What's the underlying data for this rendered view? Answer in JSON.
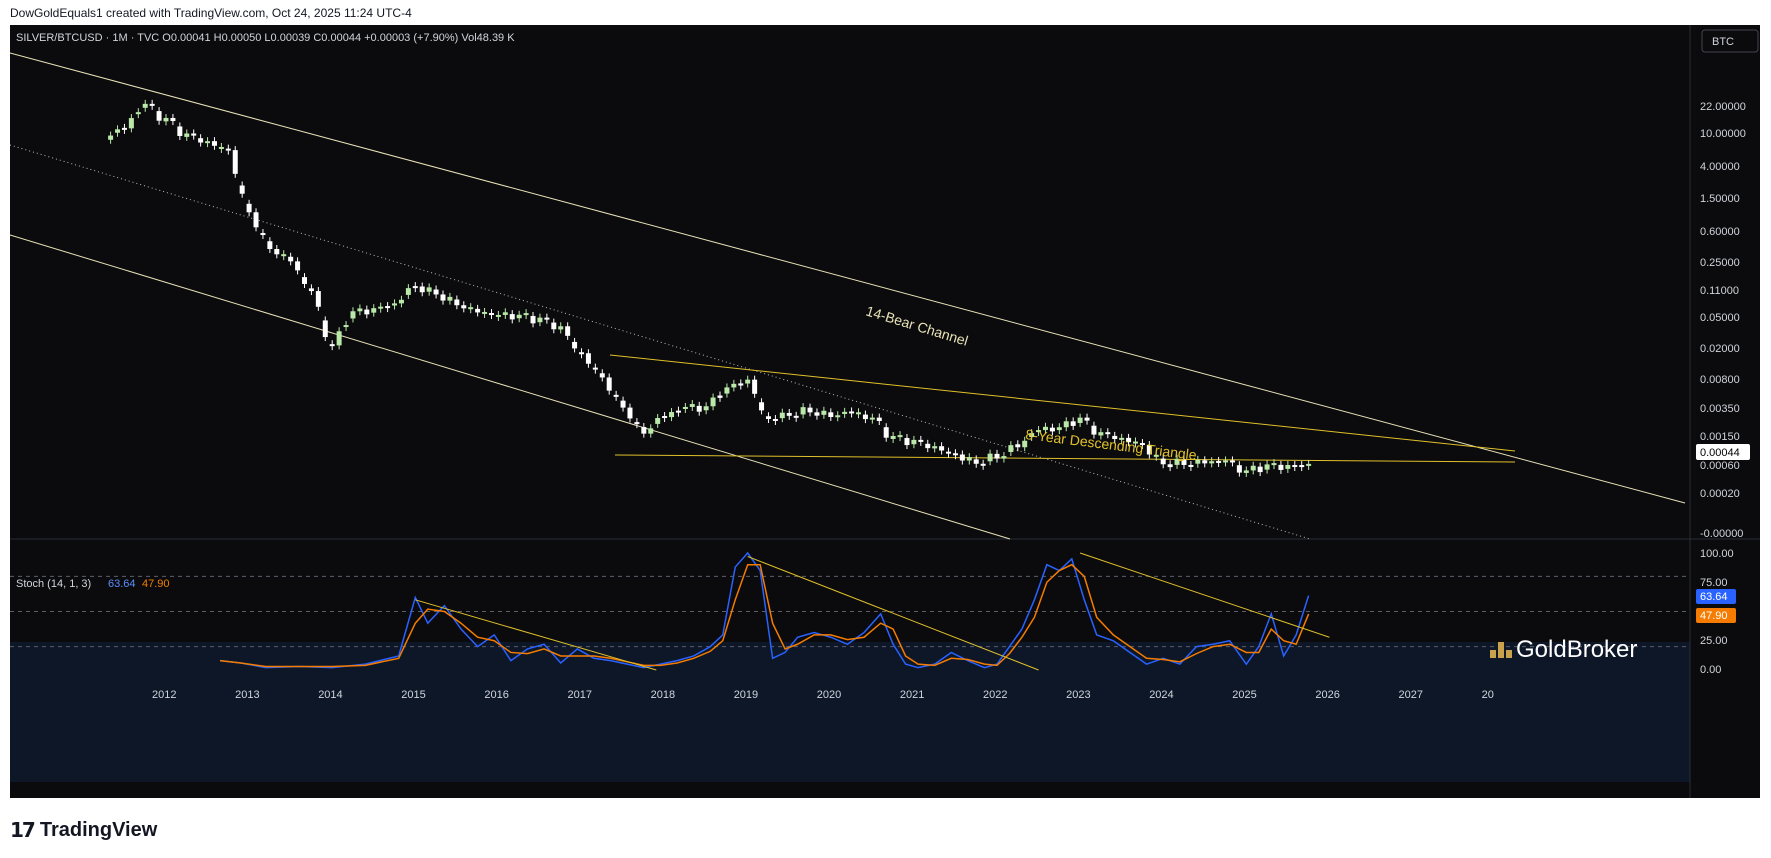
{
  "header": {
    "credit": "DowGoldEquals1 created with TradingView.com, Oct 24, 2025 11:24 UTC-4"
  },
  "legend": {
    "symbol_line": "SILVER/BTCUSD · 1M · TVC  O0.00041  H0.00050  L0.00039  C0.00044  +0.00003 (+7.90%)  Vol48.39 K",
    "currency_button": "BTC",
    "stoch_label": "Stoch (14, 1, 3)",
    "stoch_k": "63.64",
    "stoch_d": "47.90"
  },
  "watermark": "GoldBroker",
  "footer": {
    "brand": "TradingView"
  },
  "colors": {
    "background": "#0b0b0d",
    "channel": "#e8e2b8",
    "triangle": "#e0c02a",
    "candle_up": "#b9e8a8",
    "candle_down": "#ffffff",
    "stoch_k": "#2962ff",
    "stoch_d": "#f57c00",
    "price_tag": "#ffffff",
    "k_tag": "#2962ff",
    "d_tag": "#f57c00"
  },
  "chart_data": [
    {
      "type": "candlestick",
      "title": "SILVER/BTCUSD",
      "interval": "1M",
      "scale": "log",
      "x_ticks": [
        "2012",
        "2013",
        "2014",
        "2015",
        "2016",
        "2017",
        "2018",
        "2019",
        "2020",
        "2021",
        "2022",
        "2023",
        "2024",
        "2025",
        "2026",
        "2027",
        "20"
      ],
      "y_ticks": [
        "22.00000",
        "10.00000",
        "4.00000",
        "1.50000",
        "0.60000",
        "0.25000",
        "0.11000",
        "0.05000",
        "0.02000",
        "0.00800",
        "0.00350",
        "0.00150",
        "0.00060",
        "0.00020",
        "-0.00000"
      ],
      "last_price": "0.00044",
      "annotations": [
        "14-Bear Channel",
        "8-Year Descending Triangle"
      ],
      "ohlc_monthly_close": {
        "x": [
          2011.5,
          2011.75,
          2012.0,
          2012.25,
          2012.5,
          2012.75,
          2013.0,
          2013.25,
          2013.5,
          2013.75,
          2014.0,
          2014.25,
          2014.5,
          2014.75,
          2015.0,
          2015.25,
          2015.5,
          2015.75,
          2016.0,
          2016.25,
          2016.5,
          2016.75,
          2017.0,
          2017.25,
          2017.5,
          2017.75,
          2018.0,
          2018.25,
          2018.5,
          2018.75,
          2019.0,
          2019.25,
          2019.5,
          2019.75,
          2020.0,
          2020.25,
          2020.5,
          2020.75,
          2021.0,
          2021.25,
          2021.5,
          2021.75,
          2022.0,
          2022.25,
          2022.5,
          2022.75,
          2023.0,
          2023.25,
          2023.5,
          2023.75,
          2024.0,
          2024.25,
          2024.5,
          2024.75,
          2025.0,
          2025.25,
          2025.5,
          2025.75
        ],
        "close": [
          6.0,
          11.0,
          7.0,
          4.5,
          3.8,
          3.2,
          0.6,
          0.22,
          0.15,
          0.06,
          0.012,
          0.03,
          0.033,
          0.04,
          0.07,
          0.06,
          0.045,
          0.035,
          0.03,
          0.028,
          0.025,
          0.02,
          0.01,
          0.0055,
          0.0025,
          0.0012,
          0.0018,
          0.0022,
          0.0021,
          0.0035,
          0.0045,
          0.0016,
          0.0019,
          0.0022,
          0.0019,
          0.002,
          0.0016,
          0.0009,
          0.0008,
          0.0007,
          0.0006,
          0.0005,
          0.0006,
          0.0008,
          0.0012,
          0.0012,
          0.0015,
          0.001,
          0.0009,
          0.0008,
          0.0005,
          0.0005,
          0.0005,
          0.0005,
          0.00035,
          0.0004,
          0.0004,
          0.00044
        ]
      }
    },
    {
      "type": "line",
      "title": "Stoch (14, 1, 3)",
      "ylim": [
        0,
        100
      ],
      "y_ticks": [
        "100.00",
        "75.00",
        "25.00",
        "0.00"
      ],
      "levels": [
        80,
        50,
        20
      ],
      "series": [
        {
          "name": "%K",
          "last": 63.64,
          "x": [
            2012.65,
            2012.9,
            2013.2,
            2013.6,
            2014.0,
            2014.4,
            2014.8,
            2015.0,
            2015.15,
            2015.35,
            2015.55,
            2015.75,
            2015.95,
            2016.15,
            2016.35,
            2016.55,
            2016.75,
            2016.95,
            2017.15,
            2017.35,
            2017.55,
            2017.75,
            2017.95,
            2018.15,
            2018.35,
            2018.55,
            2018.7,
            2018.85,
            2019.0,
            2019.15,
            2019.3,
            2019.45,
            2019.6,
            2019.8,
            2020.0,
            2020.2,
            2020.4,
            2020.6,
            2020.75,
            2020.9,
            2021.05,
            2021.25,
            2021.45,
            2021.65,
            2021.85,
            2022.0,
            2022.15,
            2022.3,
            2022.45,
            2022.6,
            2022.75,
            2022.9,
            2023.05,
            2023.2,
            2023.4,
            2023.6,
            2023.8,
            2024.0,
            2024.2,
            2024.4,
            2024.6,
            2024.8,
            2025.0,
            2025.15,
            2025.3,
            2025.45,
            2025.6,
            2025.75
          ],
          "y": [
            8,
            6,
            2,
            3,
            2,
            5,
            12,
            62,
            40,
            55,
            35,
            20,
            30,
            8,
            18,
            22,
            6,
            18,
            10,
            8,
            5,
            2,
            5,
            8,
            12,
            20,
            30,
            88,
            100,
            85,
            10,
            15,
            28,
            32,
            28,
            22,
            32,
            48,
            22,
            5,
            2,
            5,
            15,
            8,
            2,
            5,
            20,
            35,
            60,
            90,
            85,
            95,
            60,
            30,
            25,
            15,
            5,
            10,
            5,
            20,
            22,
            25,
            5,
            20,
            48,
            12,
            30,
            63.64
          ]
        },
        {
          "name": "%D",
          "last": 47.9,
          "x": [
            2012.65,
            2012.9,
            2013.2,
            2013.6,
            2014.0,
            2014.4,
            2014.8,
            2015.0,
            2015.15,
            2015.35,
            2015.55,
            2015.75,
            2015.95,
            2016.15,
            2016.35,
            2016.55,
            2016.75,
            2016.95,
            2017.15,
            2017.35,
            2017.55,
            2017.75,
            2017.95,
            2018.15,
            2018.35,
            2018.55,
            2018.7,
            2018.85,
            2019.0,
            2019.15,
            2019.3,
            2019.45,
            2019.6,
            2019.8,
            2020.0,
            2020.2,
            2020.4,
            2020.6,
            2020.75,
            2020.9,
            2021.05,
            2021.25,
            2021.45,
            2021.65,
            2021.85,
            2022.0,
            2022.15,
            2022.3,
            2022.45,
            2022.6,
            2022.75,
            2022.9,
            2023.05,
            2023.2,
            2023.4,
            2023.6,
            2023.8,
            2024.0,
            2024.2,
            2024.4,
            2024.6,
            2024.8,
            2025.0,
            2025.15,
            2025.3,
            2025.45,
            2025.6,
            2025.75
          ],
          "y": [
            8,
            6,
            3,
            3,
            3,
            4,
            10,
            40,
            52,
            50,
            40,
            28,
            25,
            15,
            14,
            18,
            12,
            12,
            12,
            10,
            7,
            4,
            4,
            6,
            10,
            16,
            25,
            60,
            90,
            90,
            40,
            18,
            22,
            30,
            30,
            26,
            28,
            40,
            35,
            12,
            5,
            4,
            10,
            9,
            5,
            4,
            14,
            28,
            45,
            75,
            85,
            90,
            80,
            45,
            30,
            20,
            10,
            9,
            7,
            14,
            20,
            22,
            15,
            15,
            35,
            25,
            22,
            47.9
          ]
        }
      ],
      "trendlines": [
        {
          "from": [
            2015.0,
            60
          ],
          "to": [
            2017.9,
            0
          ]
        },
        {
          "from": [
            2019.0,
            97
          ],
          "to": [
            2022.5,
            0
          ]
        },
        {
          "from": [
            2023.0,
            100
          ],
          "to": [
            2026.0,
            28
          ]
        }
      ]
    }
  ]
}
